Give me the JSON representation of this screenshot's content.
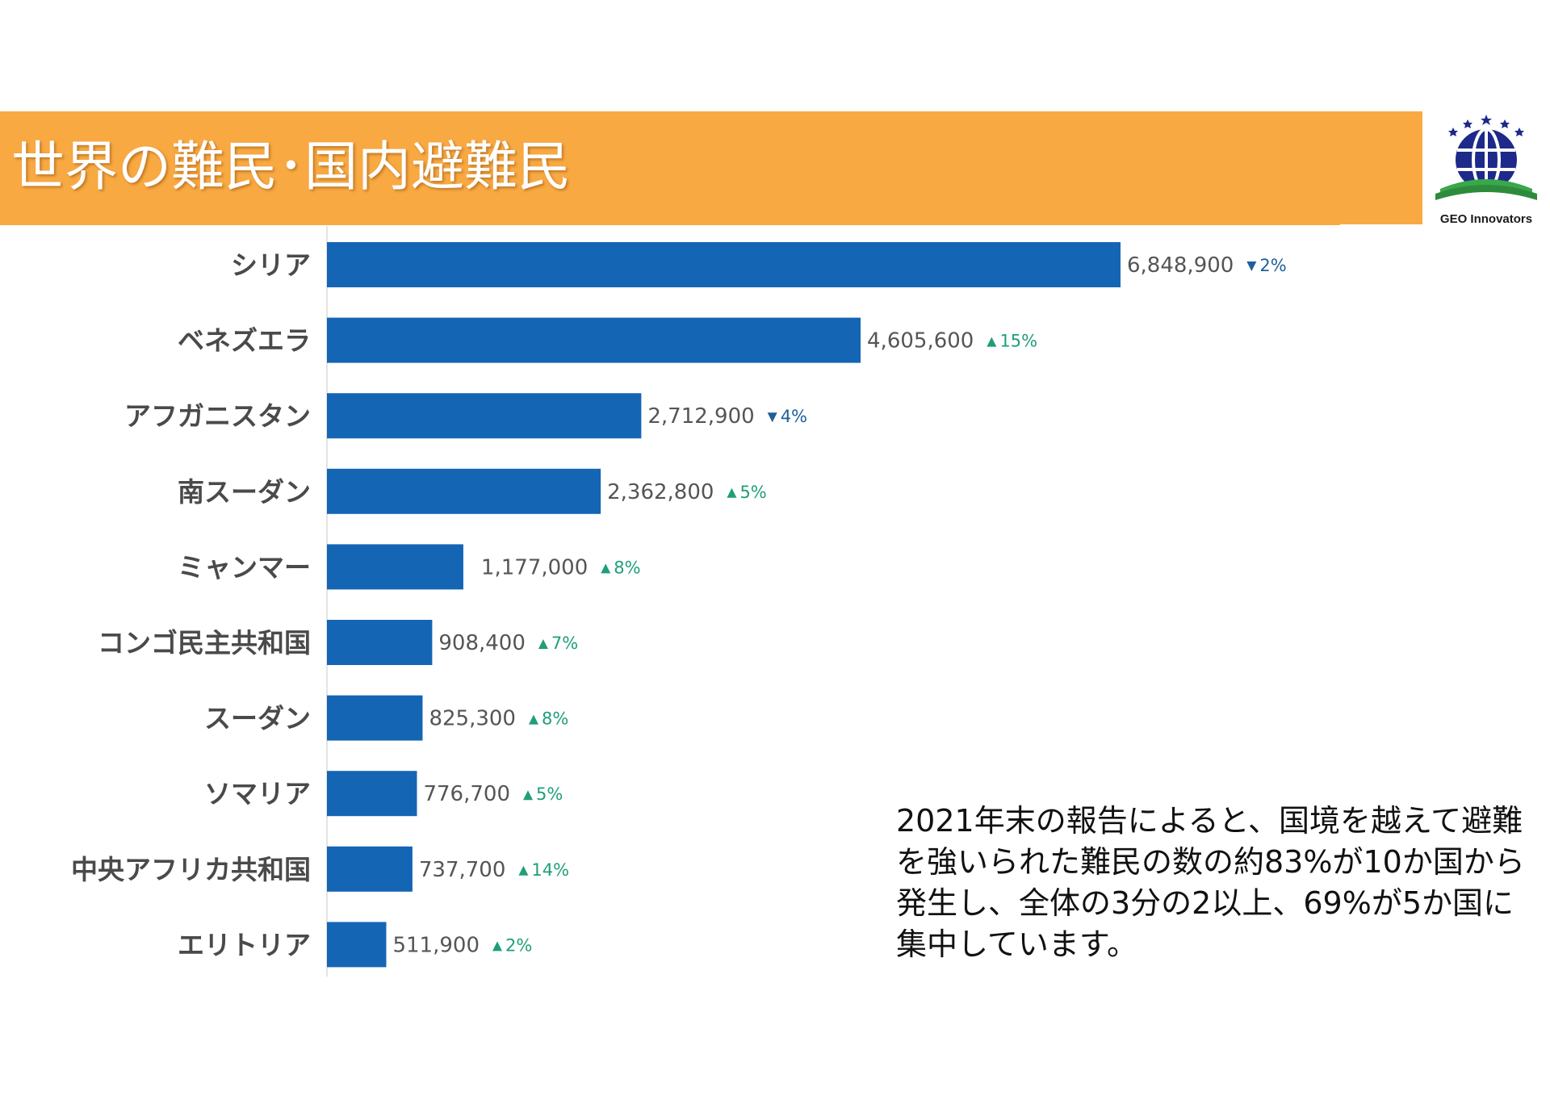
{
  "slide": {
    "title": "世界の難民･国内避難民",
    "logo_text": "GEO Innovators",
    "note": "2021年末の報告によると、国境を越えて避難を強いられた難民の数の約83%が10か国から発生し、全体の3分の2以上、69%が5か国に集中しています。"
  },
  "colors": {
    "header": "#f9a942",
    "bar": "#1565b5",
    "up": "#1f9e7a",
    "down": "#1f5f9c"
  },
  "chart_data": {
    "type": "bar",
    "orientation": "horizontal",
    "categories": [
      "シリア",
      "ベネズエラ",
      "アフガニスタン",
      "南スーダン",
      "ミャンマー",
      "コンゴ民主共和国",
      "スーダン",
      "ソマリア",
      "中央アフリカ共和国",
      "エリトリア"
    ],
    "values": [
      6848900,
      4605600,
      2712900,
      2362800,
      1177000,
      908400,
      825300,
      776700,
      737700,
      511900
    ],
    "value_labels": [
      "6,848,900",
      "4,605,600",
      "2,712,900",
      "2,362,800",
      "1,177,000",
      "908,400",
      "825,300",
      "776,700",
      "737,700",
      "511,900"
    ],
    "changes": [
      {
        "direction": "down",
        "label": "2%"
      },
      {
        "direction": "up",
        "label": "15%"
      },
      {
        "direction": "down",
        "label": "4%"
      },
      {
        "direction": "up",
        "label": "5%"
      },
      {
        "direction": "up",
        "label": "8%"
      },
      {
        "direction": "up",
        "label": "7%"
      },
      {
        "direction": "up",
        "label": "8%"
      },
      {
        "direction": "up",
        "label": "5%"
      },
      {
        "direction": "up",
        "label": "14%"
      },
      {
        "direction": "up",
        "label": "2%"
      }
    ],
    "xlim": [
      0,
      6848900
    ],
    "grid": false,
    "legend": "none"
  }
}
